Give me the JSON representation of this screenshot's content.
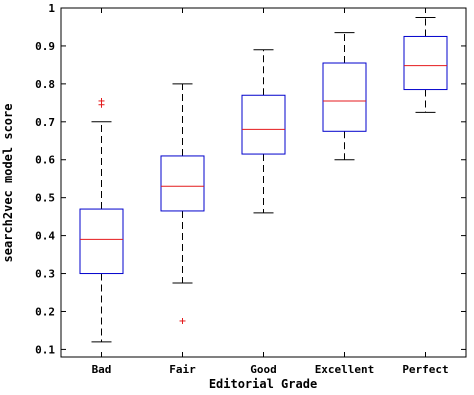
{
  "chart_data": {
    "type": "box",
    "xlabel": "Editorial Grade",
    "ylabel": "search2vec model score",
    "ylim": [
      0.08,
      1.0
    ],
    "yticks": [
      0.1,
      0.2,
      0.3,
      0.4,
      0.5,
      0.6,
      0.7,
      0.8,
      0.9,
      1
    ],
    "ytick_labels": [
      "0.1",
      "0.2",
      "0.3",
      "0.4",
      "0.5",
      "0.6",
      "0.7",
      "0.8",
      "0.9",
      "1"
    ],
    "grid": false,
    "colors": {
      "box": "#0000cc",
      "median": "#e41a1c",
      "whisker": "#000000",
      "outlier": "#e41a1c"
    },
    "categories": [
      "Bad",
      "Fair",
      "Good",
      "Excellent",
      "Perfect"
    ],
    "boxes": [
      {
        "category": "Bad",
        "whisker_low": 0.12,
        "q1": 0.3,
        "median": 0.39,
        "q3": 0.47,
        "whisker_high": 0.7,
        "outliers": [
          0.745,
          0.755
        ]
      },
      {
        "category": "Fair",
        "whisker_low": 0.275,
        "q1": 0.465,
        "median": 0.53,
        "q3": 0.61,
        "whisker_high": 0.8,
        "outliers": [
          0.175
        ]
      },
      {
        "category": "Good",
        "whisker_low": 0.46,
        "q1": 0.615,
        "median": 0.68,
        "q3": 0.77,
        "whisker_high": 0.89,
        "outliers": []
      },
      {
        "category": "Excellent",
        "whisker_low": 0.6,
        "q1": 0.675,
        "median": 0.755,
        "q3": 0.855,
        "whisker_high": 0.935,
        "outliers": []
      },
      {
        "category": "Perfect",
        "whisker_low": 0.725,
        "q1": 0.785,
        "median": 0.848,
        "q3": 0.925,
        "whisker_high": 0.975,
        "outliers": []
      }
    ]
  }
}
